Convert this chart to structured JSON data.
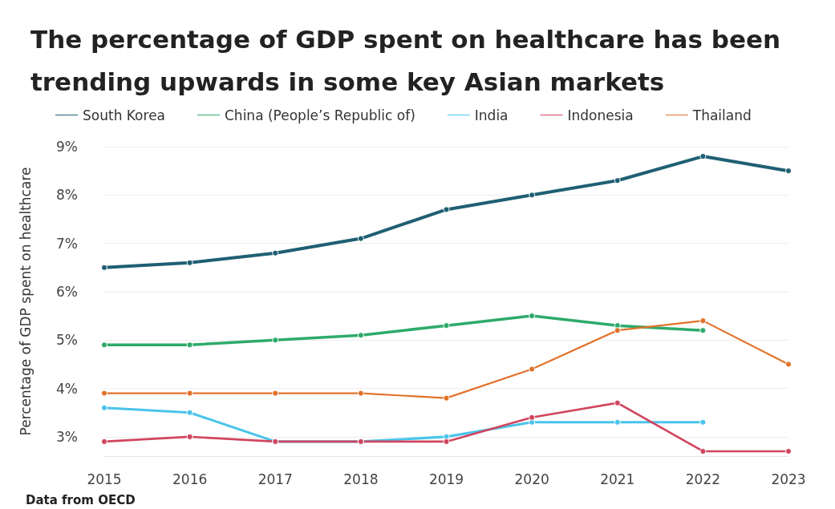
{
  "chart_data": {
    "type": "line",
    "title": "The percentage of GDP spent on healthcare has been\ntrending upwards in some key Asian markets",
    "ylabel": "Percentage of GDP spent on healthcare",
    "annotations": [
      "Data from OECD"
    ],
    "categories": [
      "2015",
      "2016",
      "2017",
      "2018",
      "2019",
      "2020",
      "2021",
      "2022",
      "2023"
    ],
    "series": [
      {
        "name": "South Korea",
        "color": "#1f5f73",
        "values": [
          6.5,
          6.6,
          6.8,
          7.1,
          7.7,
          8.0,
          8.3,
          8.8,
          8.5
        ]
      },
      {
        "name": "China (People’s Republic of)",
        "color": "#2eaa6a",
        "values": [
          4.9,
          4.9,
          5.0,
          5.1,
          5.3,
          5.5,
          5.3,
          5.2,
          null
        ]
      },
      {
        "name": "India",
        "color": "#4bc4ea",
        "values": [
          3.6,
          3.5,
          2.9,
          2.9,
          3.0,
          3.3,
          3.3,
          3.3,
          null
        ]
      },
      {
        "name": "Indonesia",
        "color": "#d0455f",
        "values": [
          2.9,
          3.0,
          2.9,
          2.9,
          2.9,
          3.4,
          3.7,
          2.7,
          2.7
        ]
      },
      {
        "name": "Thailand",
        "color": "#e2722b",
        "values": [
          3.9,
          3.9,
          3.9,
          3.9,
          3.8,
          4.4,
          5.2,
          5.4,
          4.5
        ]
      }
    ],
    "ylim": [
      2.6,
      9
    ],
    "yticks": [
      {
        "value": 3,
        "label": "3%"
      },
      {
        "value": 4,
        "label": "4%"
      },
      {
        "value": 5,
        "label": "5%"
      },
      {
        "value": 6,
        "label": "6%"
      },
      {
        "value": 7,
        "label": "7%"
      },
      {
        "value": 8,
        "label": "8%"
      },
      {
        "value": 9,
        "label": "9%"
      }
    ],
    "grid": "y",
    "legend": "top",
    "marker": "circle",
    "line_style": "solid"
  }
}
